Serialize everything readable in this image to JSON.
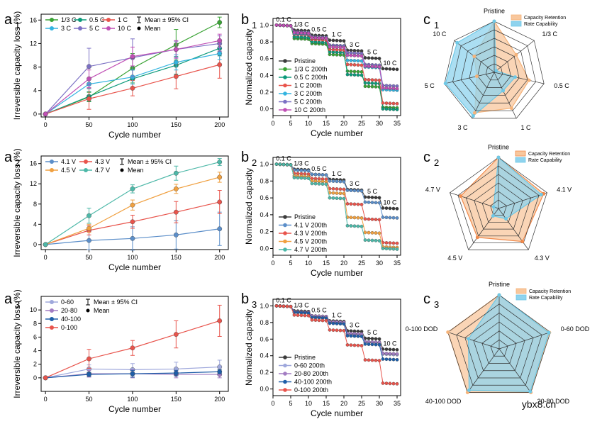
{
  "panel_labels": [
    {
      "id": "a1",
      "main": "a",
      "sub": "1"
    },
    {
      "id": "b1",
      "main": "b",
      "sub": "1"
    },
    {
      "id": "c1",
      "main": "c",
      "sub": "1"
    },
    {
      "id": "a2",
      "main": "a",
      "sub": "2"
    },
    {
      "id": "b2",
      "main": "b",
      "sub": "2"
    },
    {
      "id": "c2",
      "main": "c",
      "sub": "2"
    },
    {
      "id": "a3",
      "main": "a",
      "sub": "3"
    },
    {
      "id": "b3",
      "main": "b",
      "sub": "3"
    },
    {
      "id": "c3",
      "main": "c",
      "sub": "3"
    }
  ],
  "watermark": "ybx8.cn",
  "chart_data": [
    {
      "id": "a1",
      "type": "line",
      "xlabel": "Cycle number",
      "ylabel": "Irreversible capacity loss (%)",
      "xlim": [
        -5,
        210
      ],
      "ylim": [
        -0.5,
        17
      ],
      "xticks": [
        0,
        50,
        100,
        150,
        200
      ],
      "yticks": [
        0,
        4,
        8,
        12,
        16
      ],
      "legend_extra": [
        "Mean ± 95% CI",
        "Mean"
      ],
      "series": [
        {
          "name": "1/3 C",
          "color": "#3aa335",
          "x": [
            0,
            50,
            100,
            150,
            200
          ],
          "y": [
            0,
            2.9,
            7.8,
            11.8,
            15.6
          ],
          "err": [
            0,
            0.8,
            2.5,
            2.6,
            0.9
          ]
        },
        {
          "name": "0.5 C",
          "color": "#0c9a7a",
          "x": [
            0,
            50,
            100,
            150,
            200
          ],
          "y": [
            0,
            3.0,
            6.0,
            8.3,
            11.2
          ],
          "err": [
            0,
            0.8,
            1.5,
            1.5,
            1.3
          ]
        },
        {
          "name": "1 C",
          "color": "#e8544c",
          "x": [
            0,
            50,
            100,
            150,
            200
          ],
          "y": [
            0,
            2.6,
            4.4,
            6.4,
            8.4
          ],
          "err": [
            0,
            1.8,
            1.3,
            2.1,
            2.3
          ]
        },
        {
          "name": "3 C",
          "color": "#33b4e0",
          "x": [
            0,
            50,
            100,
            150,
            200
          ],
          "y": [
            0,
            5.1,
            6.3,
            8.8,
            10.3
          ],
          "err": [
            0,
            0.8,
            1.2,
            1.3,
            1.0
          ]
        },
        {
          "name": "5 C",
          "color": "#7b70c4",
          "x": [
            0,
            50,
            100,
            150,
            200
          ],
          "y": [
            0,
            8.1,
            9.6,
            11.0,
            12.0
          ],
          "err": [
            0,
            3.1,
            3.2,
            1.4,
            1.3
          ]
        },
        {
          "name": "10 C",
          "color": "#c050b5",
          "x": [
            0,
            50,
            100,
            150,
            200
          ],
          "y": [
            0,
            6.0,
            9.8,
            11.0,
            12.5
          ],
          "err": [
            0,
            1.5,
            1.6,
            1.5,
            1.1
          ]
        }
      ]
    },
    {
      "id": "a2",
      "type": "line",
      "xlabel": "Cycle number",
      "ylabel": "Irreversible capacity loss (%)",
      "xlim": [
        -5,
        210
      ],
      "ylim": [
        -1,
        17.5
      ],
      "xticks": [
        0,
        50,
        100,
        150,
        200
      ],
      "yticks": [
        0,
        4,
        8,
        12,
        16
      ],
      "legend_extra": [
        "Mean ± 95% CI",
        "Mean"
      ],
      "series": [
        {
          "name": "4.1 V",
          "color": "#5b8ec9",
          "x": [
            0,
            50,
            100,
            150,
            200
          ],
          "y": [
            0,
            0.8,
            1.2,
            1.9,
            3.1
          ],
          "err": [
            0,
            1.8,
            2.3,
            2.8,
            3.3
          ]
        },
        {
          "name": "4.3 V",
          "color": "#e8544c",
          "x": [
            0,
            50,
            100,
            150,
            200
          ],
          "y": [
            0,
            2.8,
            4.5,
            6.4,
            8.4
          ],
          "err": [
            0,
            0.9,
            1.3,
            2.1,
            2.3
          ]
        },
        {
          "name": "4.5 V",
          "color": "#f0a040",
          "x": [
            0,
            50,
            100,
            150,
            200
          ],
          "y": [
            0,
            3.2,
            7.8,
            11.0,
            13.3
          ],
          "err": [
            0,
            0.8,
            1.0,
            0.9,
            1.0
          ]
        },
        {
          "name": "4.7 V",
          "color": "#4db8a8",
          "x": [
            0,
            50,
            100,
            150,
            200
          ],
          "y": [
            0,
            5.7,
            11.0,
            14.1,
            16.3
          ],
          "err": [
            0,
            1.5,
            0.8,
            1.4,
            0.7
          ]
        }
      ]
    },
    {
      "id": "a3",
      "type": "line",
      "xlabel": "Cycle number",
      "ylabel": "Irreversible capacity loss (%)",
      "xlim": [
        -5,
        210
      ],
      "ylim": [
        -2,
        12
      ],
      "xticks": [
        0,
        50,
        100,
        150,
        200
      ],
      "yticks": [
        0,
        2,
        4,
        6,
        8,
        10
      ],
      "legend_extra": [
        "Mean ± 95% CI",
        "Mean"
      ],
      "series": [
        {
          "name": "0-60",
          "color": "#9fa8dc",
          "x": [
            0,
            50,
            100,
            150,
            200
          ],
          "y": [
            0,
            1.3,
            1.2,
            1.3,
            1.6
          ],
          "err": [
            0,
            0.6,
            0.9,
            1.0,
            1.0
          ]
        },
        {
          "name": "20-80",
          "color": "#a27cc2",
          "x": [
            0,
            50,
            100,
            150,
            200
          ],
          "y": [
            0,
            0.6,
            0.6,
            0.5,
            0.5
          ],
          "err": [
            0,
            0.5,
            0.6,
            0.5,
            0.5
          ]
        },
        {
          "name": "40-100",
          "color": "#1e5ea8",
          "x": [
            0,
            50,
            100,
            150,
            200
          ],
          "y": [
            0,
            0.5,
            0.6,
            0.7,
            0.9
          ],
          "err": [
            0,
            0.3,
            0.5,
            0.4,
            0.3
          ]
        },
        {
          "name": "0-100",
          "color": "#e8544c",
          "x": [
            0,
            50,
            100,
            150,
            200
          ],
          "y": [
            0,
            2.8,
            4.4,
            6.4,
            8.4
          ],
          "err": [
            0,
            1.4,
            1.1,
            2.0,
            2.3
          ]
        }
      ]
    },
    {
      "id": "b1",
      "type": "line",
      "xlabel": "Cycle number",
      "ylabel": "Normalized capacity",
      "xlim": [
        0,
        36
      ],
      "ylim": [
        -0.08,
        1.08
      ],
      "xticks": [
        0,
        5,
        10,
        15,
        20,
        25,
        30,
        35
      ],
      "yticks": [
        0.0,
        0.2,
        0.4,
        0.6,
        0.8,
        1.0
      ],
      "rate_labels": [
        "0.1 C",
        "1/3 C",
        "0.5 C",
        "1 C",
        "3 C",
        "5 C",
        "10 C"
      ],
      "series": [
        {
          "name": "Pristine",
          "color": "#3c3c3c",
          "levels": [
            1.0,
            0.94,
            0.88,
            0.82,
            0.7,
            0.61,
            0.48
          ]
        },
        {
          "name": "1/3 C 200th",
          "color": "#3aa335",
          "levels": [
            1.0,
            0.84,
            0.78,
            0.65,
            0.45,
            0.27,
            0.02
          ]
        },
        {
          "name": "0.5 C 200th",
          "color": "#0c9a7a",
          "levels": [
            1.0,
            0.86,
            0.8,
            0.68,
            0.41,
            0.31,
            0.0
          ]
        },
        {
          "name": "1 C 200th",
          "color": "#e8544c",
          "levels": [
            1.0,
            0.89,
            0.83,
            0.71,
            0.53,
            0.35,
            0.07
          ]
        },
        {
          "name": "3 C 200th",
          "color": "#33b4e0",
          "levels": [
            1.0,
            0.9,
            0.85,
            0.76,
            0.58,
            0.5,
            0.23
          ]
        },
        {
          "name": "5 C 200th",
          "color": "#7b70c4",
          "levels": [
            1.0,
            0.92,
            0.86,
            0.76,
            0.67,
            0.53,
            0.28
          ]
        },
        {
          "name": "10 C 200th",
          "color": "#c050b5",
          "levels": [
            1.0,
            0.91,
            0.85,
            0.74,
            0.64,
            0.51,
            0.25
          ]
        }
      ]
    },
    {
      "id": "b2",
      "type": "line",
      "xlabel": "Cycle number",
      "ylabel": "Normalized capacity",
      "xlim": [
        0,
        36
      ],
      "ylim": [
        -0.08,
        1.08
      ],
      "xticks": [
        0,
        5,
        10,
        15,
        20,
        25,
        30,
        35
      ],
      "yticks": [
        0.0,
        0.2,
        0.4,
        0.6,
        0.8,
        1.0
      ],
      "rate_labels": [
        "0.1 C",
        "1/3 C",
        "0.5 C",
        "1 C",
        "3 C",
        "5 C",
        "10 C"
      ],
      "series": [
        {
          "name": "Pristine",
          "color": "#3c3c3c",
          "levels": [
            1.0,
            0.94,
            0.88,
            0.82,
            0.7,
            0.61,
            0.48
          ]
        },
        {
          "name": "4.1 V 200th",
          "color": "#5b8ec9",
          "levels": [
            1.0,
            0.93,
            0.88,
            0.8,
            0.69,
            0.55,
            0.37
          ]
        },
        {
          "name": "4.3 V 200th",
          "color": "#e8544c",
          "levels": [
            1.0,
            0.89,
            0.83,
            0.71,
            0.53,
            0.35,
            0.07
          ]
        },
        {
          "name": "4.5 V 200th",
          "color": "#f0a040",
          "levels": [
            1.0,
            0.86,
            0.8,
            0.66,
            0.37,
            0.19,
            0.02
          ]
        },
        {
          "name": "4.7 V 200th",
          "color": "#4db8a8",
          "levels": [
            1.0,
            0.84,
            0.77,
            0.6,
            0.27,
            0.1,
            0.0
          ]
        }
      ]
    },
    {
      "id": "b3",
      "type": "line",
      "xlabel": "Cycle number",
      "ylabel": "Normalized capacity",
      "xlim": [
        0,
        36
      ],
      "ylim": [
        -0.08,
        1.08
      ],
      "xticks": [
        0,
        5,
        10,
        15,
        20,
        25,
        30,
        35
      ],
      "yticks": [
        0.0,
        0.2,
        0.4,
        0.6,
        0.8,
        1.0
      ],
      "rate_labels": [
        "0.1 C",
        "1/3 C",
        "0.5 C",
        "1 C",
        "3 C",
        "5 C",
        "10 C"
      ],
      "series": [
        {
          "name": "Pristine",
          "color": "#3c3c3c",
          "levels": [
            1.0,
            0.94,
            0.88,
            0.82,
            0.7,
            0.61,
            0.48
          ]
        },
        {
          "name": "0-60 200th",
          "color": "#9fa8dc",
          "levels": [
            1.0,
            0.93,
            0.87,
            0.8,
            0.66,
            0.56,
            0.42
          ]
        },
        {
          "name": "20-80 200th",
          "color": "#a27cc2",
          "levels": [
            1.0,
            0.93,
            0.88,
            0.81,
            0.67,
            0.57,
            0.43
          ]
        },
        {
          "name": "40-100 200th",
          "color": "#1e5ea8",
          "levels": [
            1.0,
            0.92,
            0.86,
            0.79,
            0.64,
            0.54,
            0.36
          ]
        },
        {
          "name": "0-100 200th",
          "color": "#e8544c",
          "levels": [
            1.0,
            0.89,
            0.83,
            0.71,
            0.53,
            0.35,
            0.07
          ]
        }
      ]
    },
    {
      "id": "c1",
      "type": "radar",
      "axes": [
        "Pristine",
        "1/3 C",
        "0.5 C",
        "1 C",
        "3 C",
        "5 C",
        "10 C"
      ],
      "legend": [
        "Capacity Retention",
        "Rate Capability"
      ],
      "rings": 6,
      "series": [
        {
          "name": "Capacity Retention",
          "color": "#f5b37a",
          "fill": "#f8c79d",
          "values": [
            1.0,
            0.55,
            0.7,
            0.78,
            0.88,
            0.35,
            0.5
          ]
        },
        {
          "name": "Rate Capability",
          "color": "#6ec8e6",
          "fill": "#8fd3ee",
          "values": [
            1.0,
            0.05,
            0.42,
            0.4,
            0.95,
            0.98,
            0.93
          ]
        }
      ]
    },
    {
      "id": "c2",
      "type": "radar",
      "axes": [
        "Pristine",
        "4.1 V",
        "4.3 V",
        "4.5 V",
        "4.7 V"
      ],
      "legend": [
        "Capacity Retention",
        "Rate Capability"
      ],
      "rings": 6,
      "series": [
        {
          "name": "Capacity Retention",
          "color": "#f08a4c",
          "fill": "#f8c79d",
          "values": [
            1.0,
            0.93,
            0.8,
            0.7,
            0.78
          ]
        },
        {
          "name": "Rate Capability",
          "color": "#6ec8e6",
          "fill": "#8fd3ee",
          "values": [
            1.0,
            0.88,
            0.25,
            0.18,
            0.1
          ]
        }
      ]
    },
    {
      "id": "c3",
      "type": "radar",
      "axes": [
        "Pristine",
        "0-60 DOD",
        "20-80 DOD",
        "40-100 DOD",
        "0-100 DOD"
      ],
      "legend": [
        "Capacity Retention",
        "Rate Capability"
      ],
      "rings": 6,
      "series": [
        {
          "name": "Capacity Retention",
          "color": "#f5b37a",
          "fill": "#f8c79d",
          "values": [
            1.0,
            0.98,
            1.0,
            1.0,
            1.0
          ]
        },
        {
          "name": "Rate Capability",
          "color": "#6ec8e6",
          "fill": "#8fd3ee",
          "values": [
            1.0,
            0.97,
            0.98,
            0.95,
            0.6
          ]
        }
      ]
    }
  ]
}
